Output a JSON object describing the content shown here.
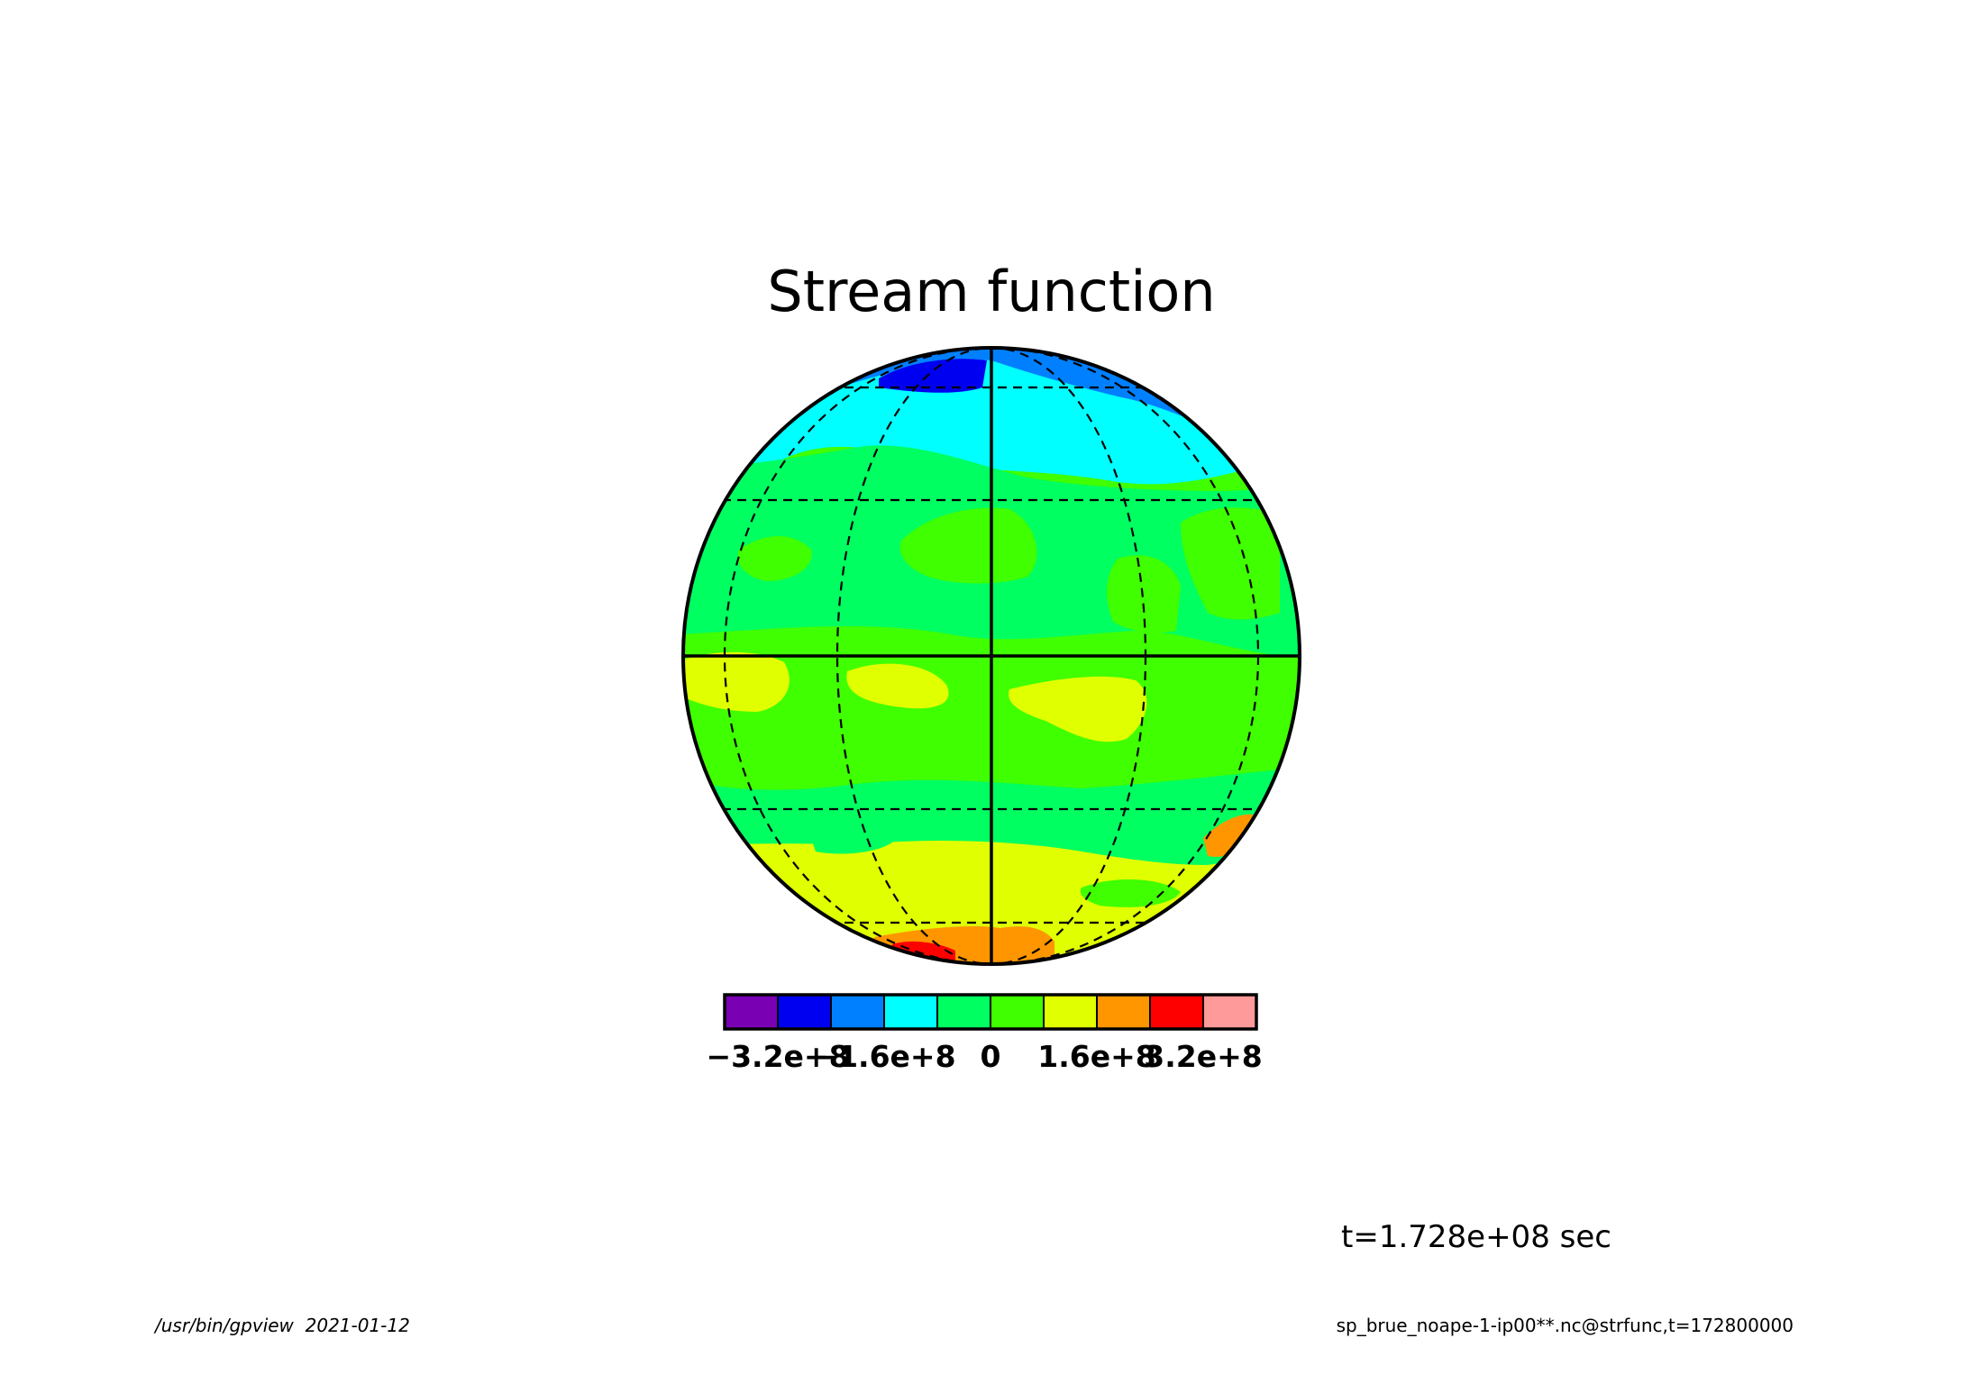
{
  "title": "Stream function",
  "colorbar": {
    "colors": [
      "#7a00b4",
      "#0000f0",
      "#0080ff",
      "#00ffff",
      "#00ff60",
      "#40ff00",
      "#e0ff00",
      "#ff9600",
      "#ff0000",
      "#ff9a9a"
    ],
    "labels": [
      "−3.2e+8",
      "−1.6e+8",
      "0",
      "1.6e+8",
      "3.2e+8"
    ]
  },
  "time_label": "t=1.728e+08 sec",
  "footer": {
    "left": "/usr/bin/gpview  2021-01-12",
    "right": "sp_brue_noape-1-ip00**.nc@strfunc,t=172800000"
  }
}
